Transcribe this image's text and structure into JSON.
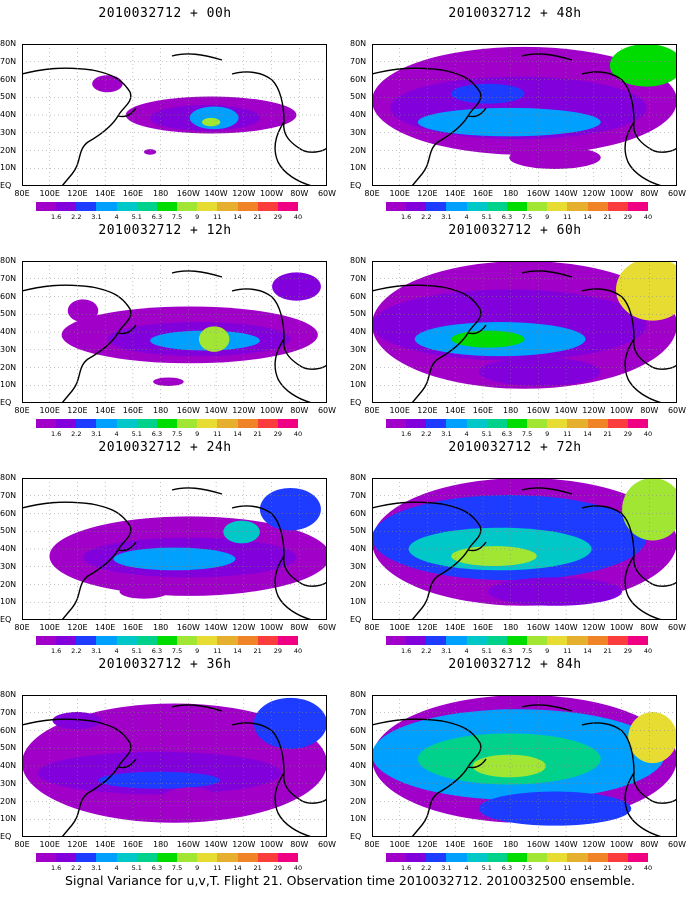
{
  "caption": "Signal Variance for u,v,T. Flight 21. Observation time 2010032712. 2010032500 ensemble.",
  "lat_labels": [
    "80N",
    "70N",
    "60N",
    "50N",
    "40N",
    "30N",
    "20N",
    "10N",
    "EQ"
  ],
  "lon_labels": [
    "80E",
    "100E",
    "120E",
    "140E",
    "160E",
    "180",
    "160W",
    "140W",
    "120W",
    "100W",
    "80W",
    "60W"
  ],
  "colorbar": {
    "labels": [
      "1.6",
      "2.2",
      "3.1",
      "4",
      "5.1",
      "6.3",
      "7.5",
      "9",
      "11",
      "14",
      "21",
      "29",
      "40"
    ],
    "colors": [
      "#a000c8",
      "#8200dc",
      "#1e3cff",
      "#00a0ff",
      "#00c8c8",
      "#00d28c",
      "#00dc00",
      "#a0e632",
      "#e6dc32",
      "#e6af2d",
      "#f08228",
      "#fa3c3c",
      "#f00082"
    ]
  },
  "panels": [
    {
      "title": "2010032712 + 00h",
      "level": 0
    },
    {
      "title": "2010032712 + 48h",
      "level": 4
    },
    {
      "title": "2010032712 + 12h",
      "level": 1
    },
    {
      "title": "2010032712 + 60h",
      "level": 5
    },
    {
      "title": "2010032712 + 24h",
      "level": 2
    },
    {
      "title": "2010032712 + 72h",
      "level": 6
    },
    {
      "title": "2010032712 + 36h",
      "level": 3
    },
    {
      "title": "2010032712 + 84h",
      "level": 7
    }
  ]
}
